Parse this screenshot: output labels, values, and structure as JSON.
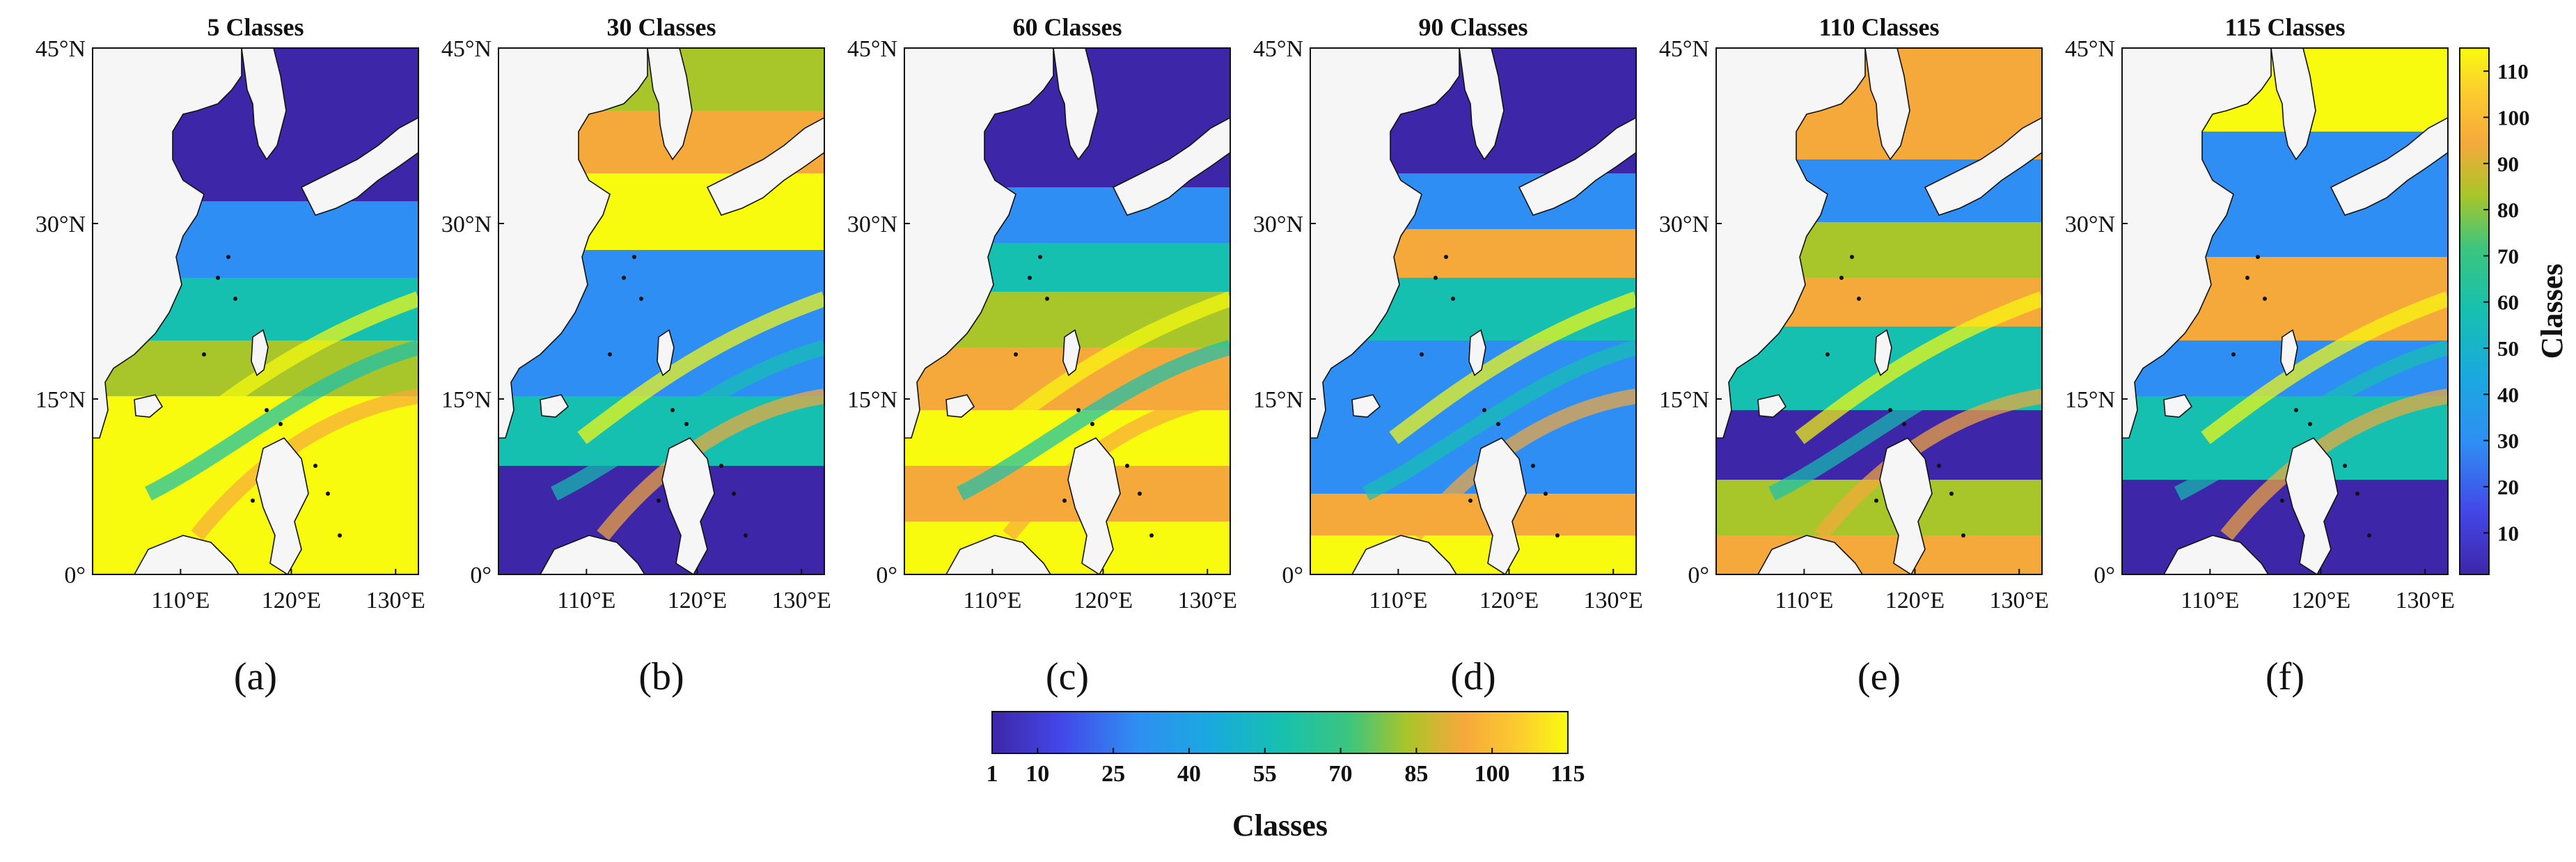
{
  "figure": {
    "panels": [
      {
        "id": "a",
        "title": "5  Classes",
        "label": "(a)"
      },
      {
        "id": "b",
        "title": "30  Classes",
        "label": "(b)"
      },
      {
        "id": "c",
        "title": "60  Classes",
        "label": "(c)"
      },
      {
        "id": "d",
        "title": "90  Classes",
        "label": "(d)"
      },
      {
        "id": "e",
        "title": "110  Classes",
        "label": "(e)"
      },
      {
        "id": "f",
        "title": "115  Classes",
        "label": "(f)"
      }
    ],
    "lat_ticks": [
      "0°",
      "15°N",
      "30°N",
      "45°N"
    ],
    "lon_ticks": [
      "110°E",
      "120°E",
      "130°E"
    ],
    "colorbar_right": {
      "title": "Classes",
      "ticks": [
        "10",
        "20",
        "30",
        "40",
        "50",
        "60",
        "70",
        "80",
        "90",
        "100",
        "110"
      ],
      "range": [
        1,
        115
      ]
    },
    "colorbar_bottom": {
      "title": "Classes",
      "ticks": [
        "1",
        "10",
        "25",
        "40",
        "55",
        "70",
        "85",
        "100",
        "115"
      ],
      "range": [
        1,
        115
      ]
    },
    "colors": {
      "low": "#3e26a8",
      "mid_low": "#2f8ef3",
      "mid": "#16c0b0",
      "mid_high": "#a8c52a",
      "orange": "#f6a93b",
      "high": "#f9fb0e",
      "land": "#f6f6f6"
    }
  }
}
